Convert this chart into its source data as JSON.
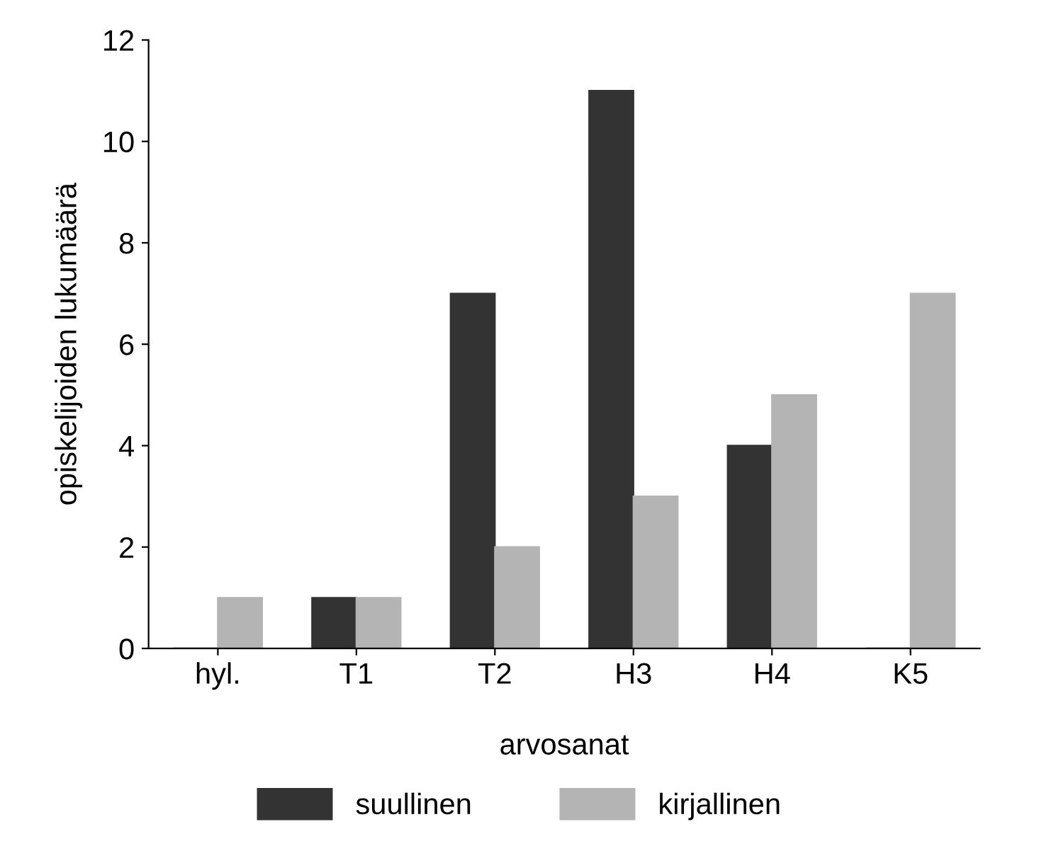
{
  "chart_data": {
    "type": "bar",
    "xlabel": "arvosanat",
    "ylabel": "opiskelijoiden lukumäärä",
    "categories": [
      "hyl.",
      "T1",
      "T2",
      "H3",
      "H4",
      "K5"
    ],
    "series": [
      {
        "name": "suullinen",
        "color": "#333333",
        "values": [
          0,
          1,
          7,
          11,
          4,
          0
        ]
      },
      {
        "name": "kirjallinen",
        "color": "#b4b4b4",
        "values": [
          1,
          1,
          2,
          3,
          5,
          7
        ]
      }
    ],
    "ylim": [
      0,
      12
    ],
    "yticks": [
      0,
      2,
      4,
      6,
      8,
      10,
      12
    ],
    "grid": false,
    "legend": "bottom"
  }
}
